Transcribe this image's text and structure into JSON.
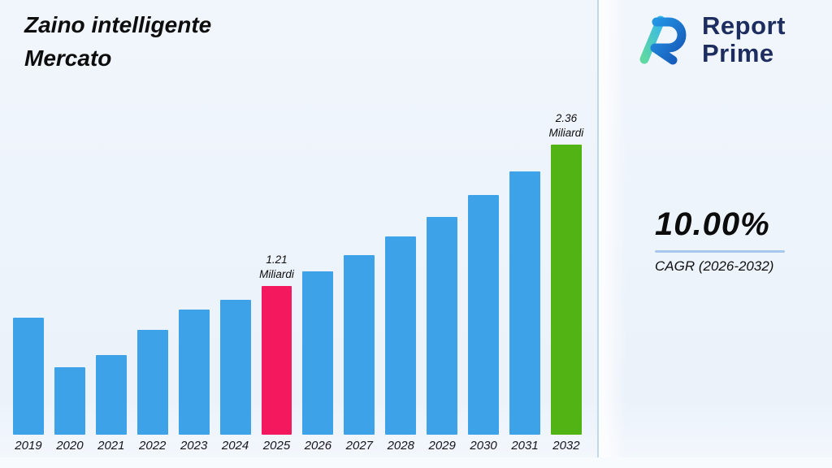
{
  "header": {
    "title_line1": "Zaino intelligente",
    "title_line2": "Mercato"
  },
  "brand": {
    "line1": "Report",
    "line2": "Prime",
    "color": "#1d2d5f"
  },
  "kpi": {
    "value": "10.00%",
    "label": "CAGR (2026-2032)"
  },
  "chart_data": {
    "type": "bar",
    "title": "Zaino intelligente Mercato",
    "unit": "Miliardi",
    "categories": [
      "2019",
      "2020",
      "2021",
      "2022",
      "2023",
      "2024",
      "2025",
      "2026",
      "2027",
      "2028",
      "2029",
      "2030",
      "2031",
      "2032"
    ],
    "values": [
      0.95,
      0.55,
      0.65,
      0.85,
      1.02,
      1.1,
      1.21,
      1.33,
      1.46,
      1.61,
      1.77,
      1.95,
      2.14,
      2.36
    ],
    "labeled_values": {
      "2025": "1.21 Miliardi",
      "2032": "2.36 Miliardi"
    },
    "annotations": [
      {
        "category": "2025",
        "lines": [
          "1.21",
          "Miliardi"
        ]
      },
      {
        "category": "2032",
        "lines": [
          "2.36",
          "Miliardi"
        ]
      }
    ],
    "colors": {
      "default": "#3EA2E8",
      "2025": "#F4195E",
      "2032": "#52B314"
    },
    "xlabel": "",
    "ylabel": "",
    "ylim": [
      0,
      2.5
    ],
    "grid": false,
    "legend": false
  }
}
